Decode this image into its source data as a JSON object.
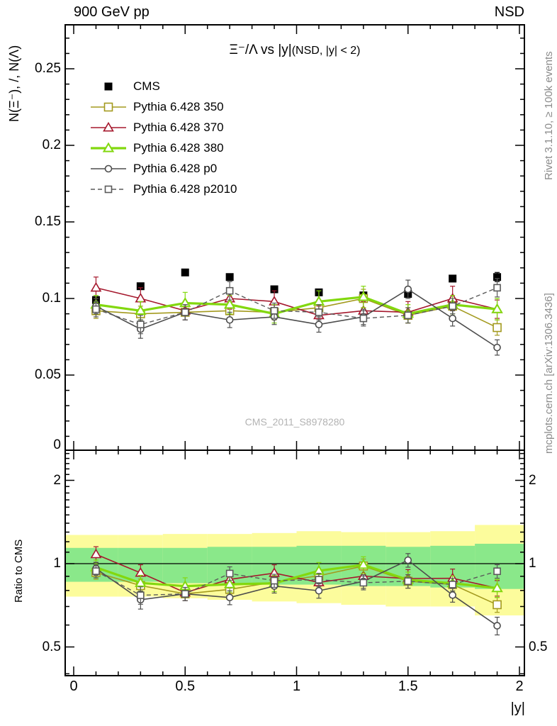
{
  "header": {
    "left": "900 GeV pp",
    "right": "NSD"
  },
  "title": {
    "main": "Ξ⁻/Λ vs |y|",
    "paren": "(NSD, |y| < 2)"
  },
  "watermark": "CMS_2011_S8978280",
  "side_notes": {
    "top": "Rivet 3.1.10, ≥ 100k events",
    "bottom": "mcplots.cern.ch [arXiv:1306.3436]"
  },
  "axes": {
    "main_ylabel": "N(Ξ⁻), /, N(Λ)",
    "ratio_ylabel": "Ratio to CMS",
    "xlabel": "|y|",
    "main_yticks": [
      {
        "v": 0.25,
        "label": "0.25"
      },
      {
        "v": 0.2,
        "label": "0.2"
      },
      {
        "v": 0.15,
        "label": "0.15"
      },
      {
        "v": 0.1,
        "label": "0.1"
      },
      {
        "v": 0.05,
        "label": "0.05"
      },
      {
        "v": 0,
        "label": "0"
      }
    ],
    "ratio_yticks": [
      {
        "v": 2,
        "label": "2"
      },
      {
        "v": 1,
        "label": "1"
      },
      {
        "v": 0.5,
        "label": "0.5"
      }
    ],
    "xticks": [
      {
        "v": 0,
        "label": "0"
      },
      {
        "v": 0.5,
        "label": "0.5"
      },
      {
        "v": 1,
        "label": "1"
      },
      {
        "v": 1.5,
        "label": "1.5"
      },
      {
        "v": 2,
        "label": "2"
      }
    ]
  },
  "chart_data": {
    "type": "line",
    "title": "Ξ⁻/Λ vs |y| (NSD, |y| < 2)",
    "xlabel": "|y|",
    "ylabel": "N(Ξ⁻), /, N(Λ)",
    "ratio_ylabel": "Ratio to CMS",
    "xlim": [
      0,
      2
    ],
    "ylim_main": [
      0,
      0.28
    ],
    "ylim_ratio": [
      0.4,
      2.57
    ],
    "ratio_log_scale": true,
    "x": [
      0.1,
      0.3,
      0.5,
      0.7,
      0.9,
      1.1,
      1.3,
      1.5,
      1.7,
      1.9
    ],
    "series": [
      {
        "name": "CMS",
        "color": "#000000",
        "marker": "square-filled",
        "msize": 11,
        "line": false,
        "dashed": false,
        "width": 0,
        "values": [
          0.099,
          0.108,
          0.117,
          0.114,
          0.106,
          0.104,
          0.102,
          0.103,
          0.113,
          0.114
        ],
        "yerr": [
          0.002,
          0.002,
          0.002,
          0.002,
          0.002,
          0.002,
          0.002,
          0.002,
          0.002,
          0.003
        ]
      },
      {
        "name": "Pythia 6.428 350",
        "color": "#a39a1e",
        "marker": "square-open",
        "msize": 11,
        "line": true,
        "dashed": false,
        "width": 1.6,
        "values": [
          0.092,
          0.09,
          0.091,
          0.092,
          0.091,
          0.094,
          0.1,
          0.089,
          0.095,
          0.081
        ],
        "yerr": [
          0.005,
          0.005,
          0.005,
          0.005,
          0.005,
          0.005,
          0.006,
          0.005,
          0.005,
          0.005
        ]
      },
      {
        "name": "Pythia 6.428 370",
        "color": "#a5182d",
        "marker": "triangle-open",
        "msize": 13,
        "line": true,
        "dashed": false,
        "width": 1.6,
        "values": [
          0.107,
          0.1,
          0.092,
          0.1,
          0.098,
          0.089,
          0.092,
          0.091,
          0.1,
          0.093
        ],
        "yerr": [
          0.007,
          0.007,
          0.006,
          0.007,
          0.007,
          0.006,
          0.006,
          0.007,
          0.008,
          0.006
        ]
      },
      {
        "name": "Pythia 6.428 380",
        "color": "#82d80e",
        "marker": "triangle-open",
        "msize": 13,
        "line": true,
        "dashed": false,
        "width": 3.2,
        "values": [
          0.096,
          0.092,
          0.097,
          0.096,
          0.09,
          0.098,
          0.101,
          0.09,
          0.096,
          0.093
        ],
        "yerr": [
          0.006,
          0.006,
          0.007,
          0.006,
          0.006,
          0.007,
          0.007,
          0.006,
          0.006,
          0.007
        ]
      },
      {
        "name": "Pythia 6.428 p0",
        "color": "#4d4d4d",
        "marker": "circle-open",
        "msize": 9,
        "line": true,
        "dashed": false,
        "width": 1.6,
        "values": [
          0.095,
          0.08,
          0.091,
          0.086,
          0.088,
          0.083,
          0.088,
          0.106,
          0.087,
          0.068
        ],
        "yerr": [
          0.005,
          0.006,
          0.005,
          0.005,
          0.005,
          0.005,
          0.005,
          0.006,
          0.005,
          0.005
        ]
      },
      {
        "name": "Pythia 6.428 p2010",
        "color": "#5a5a5a",
        "marker": "square-open",
        "msize": 9,
        "line": true,
        "dashed": true,
        "width": 1.4,
        "values": [
          0.093,
          0.083,
          0.091,
          0.105,
          0.092,
          0.091,
          0.087,
          0.089,
          0.095,
          0.107
        ],
        "yerr": [
          0.005,
          0.006,
          0.005,
          0.006,
          0.005,
          0.005,
          0.005,
          0.005,
          0.005,
          0.006
        ]
      }
    ],
    "ratio_reference": "CMS",
    "bands": {
      "bin_edges": [
        0,
        0.2,
        0.4,
        0.6,
        0.8,
        1.0,
        1.2,
        1.4,
        1.6,
        1.8,
        2.0
      ],
      "yellow": [
        [
          0.76,
          1.27
        ],
        [
          0.76,
          1.27
        ],
        [
          0.75,
          1.28
        ],
        [
          0.74,
          1.28
        ],
        [
          0.73,
          1.29
        ],
        [
          0.72,
          1.31
        ],
        [
          0.71,
          1.3
        ],
        [
          0.7,
          1.3
        ],
        [
          0.7,
          1.31
        ],
        [
          0.65,
          1.38
        ]
      ],
      "green": [
        [
          0.86,
          1.14
        ],
        [
          0.86,
          1.14
        ],
        [
          0.85,
          1.14
        ],
        [
          0.85,
          1.15
        ],
        [
          0.84,
          1.15
        ],
        [
          0.84,
          1.16
        ],
        [
          0.83,
          1.16
        ],
        [
          0.83,
          1.15
        ],
        [
          0.82,
          1.16
        ],
        [
          0.81,
          1.18
        ]
      ]
    },
    "colors": {
      "band_yellow": "#fcfc9c",
      "band_green": "#8ae88a",
      "unity_line": "#000000"
    },
    "legend_position": "top-left-inside"
  }
}
